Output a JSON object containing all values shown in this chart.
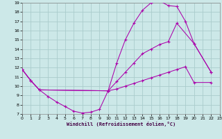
{
  "xlabel": "Windchill (Refroidissement éolien,°C)",
  "xlim": [
    0,
    23
  ],
  "ylim": [
    7,
    19
  ],
  "xticks": [
    0,
    1,
    2,
    3,
    4,
    5,
    6,
    7,
    8,
    9,
    10,
    11,
    12,
    13,
    14,
    15,
    16,
    17,
    18,
    19,
    20,
    21,
    22,
    23
  ],
  "yticks": [
    7,
    8,
    9,
    10,
    11,
    12,
    13,
    14,
    15,
    16,
    17,
    18,
    19
  ],
  "bg_color": "#cce8e8",
  "grid_color": "#aacccc",
  "line_color": "#aa00aa",
  "line1_x": [
    0,
    1,
    2,
    3,
    4,
    5,
    6,
    7,
    8,
    9,
    10,
    11,
    12,
    13,
    14,
    15,
    16,
    17,
    18,
    19,
    20,
    22
  ],
  "line1_y": [
    11.8,
    10.6,
    9.6,
    8.9,
    8.3,
    7.8,
    7.3,
    7.1,
    7.2,
    7.5,
    9.5,
    12.5,
    15.0,
    16.8,
    18.2,
    19.0,
    19.2,
    18.7,
    18.6,
    17.0,
    14.6,
    11.5
  ],
  "line2_x": [
    0,
    1,
    2,
    10,
    11,
    12,
    13,
    14,
    15,
    16,
    17,
    18,
    20,
    22
  ],
  "line2_y": [
    11.8,
    10.6,
    9.6,
    9.5,
    10.5,
    11.5,
    12.5,
    13.5,
    14.0,
    14.5,
    14.8,
    16.8,
    14.6,
    11.5
  ],
  "line3_x": [
    0,
    1,
    2,
    10,
    11,
    12,
    13,
    14,
    15,
    16,
    17,
    18,
    19,
    20,
    22
  ],
  "line3_y": [
    11.8,
    10.6,
    9.6,
    9.5,
    9.7,
    10.0,
    10.3,
    10.6,
    10.9,
    11.2,
    11.5,
    11.8,
    12.1,
    10.4,
    10.4
  ]
}
